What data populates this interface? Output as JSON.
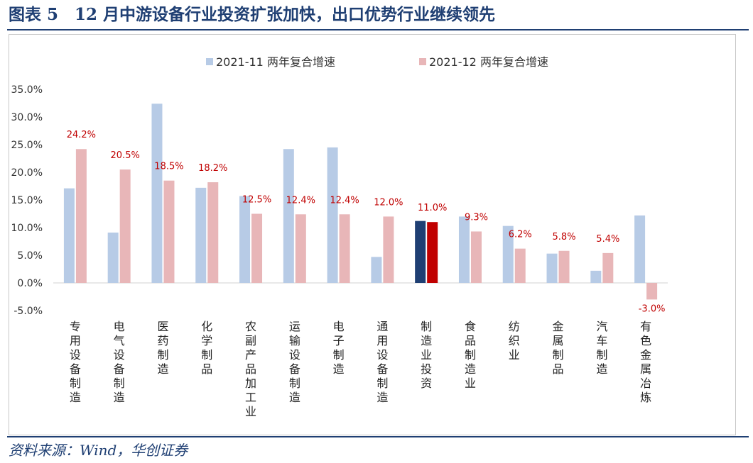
{
  "header": {
    "title": "图表 5　12 月中游设备行业投资扩张加快，出口优势行业继续领先"
  },
  "footer": {
    "source": "资料来源：Wind，华创证券"
  },
  "chart_data": {
    "type": "bar",
    "title": "12 月中游设备行业投资扩张加快，出口优势行业继续领先",
    "xlabel": "",
    "ylabel": "",
    "ylim": [
      -5,
      35
    ],
    "y_ticks": [
      "35.0%",
      "30.0%",
      "25.0%",
      "20.0%",
      "15.0%",
      "10.0%",
      "5.0%",
      "0.0%",
      "-5.0%"
    ],
    "y_tick_values": [
      35,
      30,
      25,
      20,
      15,
      10,
      5,
      0,
      -5
    ],
    "grid": false,
    "legend_position": "top-center",
    "categories": [
      "专用设备制造",
      "电气设备制造",
      "医药制造",
      "化学制品",
      "农副产品加工业",
      "运输设备制造",
      "电子制造",
      "通用设备制造",
      "制造业投资",
      "食品制造业",
      "纺织业",
      "金属制品",
      "汽车制造",
      "有色金属冶炼"
    ],
    "series": [
      {
        "name": "2021-11 两年复合增速",
        "color": "#b7cbe6",
        "highlight_color": "#1f3f73",
        "values": [
          17.1,
          9.1,
          32.4,
          17.2,
          15.7,
          24.2,
          24.5,
          4.7,
          11.2,
          12.0,
          10.3,
          5.3,
          2.2,
          12.2
        ],
        "labels": [
          null,
          null,
          null,
          null,
          null,
          null,
          null,
          null,
          null,
          null,
          null,
          null,
          null,
          null
        ]
      },
      {
        "name": "2021-12 两年复合增速",
        "color": "#e8b6b8",
        "highlight_color": "#c00000",
        "values": [
          24.2,
          20.5,
          18.5,
          18.2,
          12.5,
          12.4,
          12.4,
          12.0,
          11.0,
          9.3,
          6.2,
          5.8,
          5.4,
          -3.0
        ],
        "labels": [
          "24.2%",
          "20.5%",
          "18.5%",
          "18.2%",
          "12.5%",
          "12.4%",
          "12.4%",
          "12.0%",
          "11.0%",
          "9.3%",
          "6.2%",
          "5.8%",
          "5.4%",
          "-3.0%"
        ]
      }
    ],
    "highlight_category": "制造业投资"
  }
}
